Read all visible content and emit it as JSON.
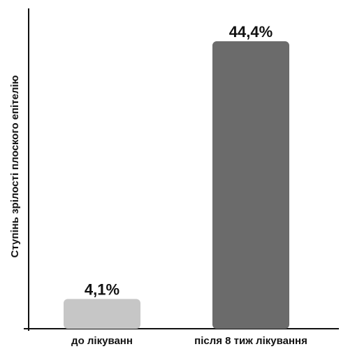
{
  "chart_data": {
    "type": "bar",
    "title": "",
    "xlabel": "",
    "ylabel": "Ступінь зрілості плоского епітелію",
    "categories": [
      "до лікуванн",
      "після 8 тиж лікування"
    ],
    "values": [
      4.1,
      44.4
    ],
    "data_labels": [
      "4,1%",
      "44,4%"
    ],
    "bar_colors": [
      "#c6c6c6",
      "#6b6b6b"
    ],
    "ylim": [
      0,
      49
    ],
    "grid": false,
    "legend": "none"
  }
}
